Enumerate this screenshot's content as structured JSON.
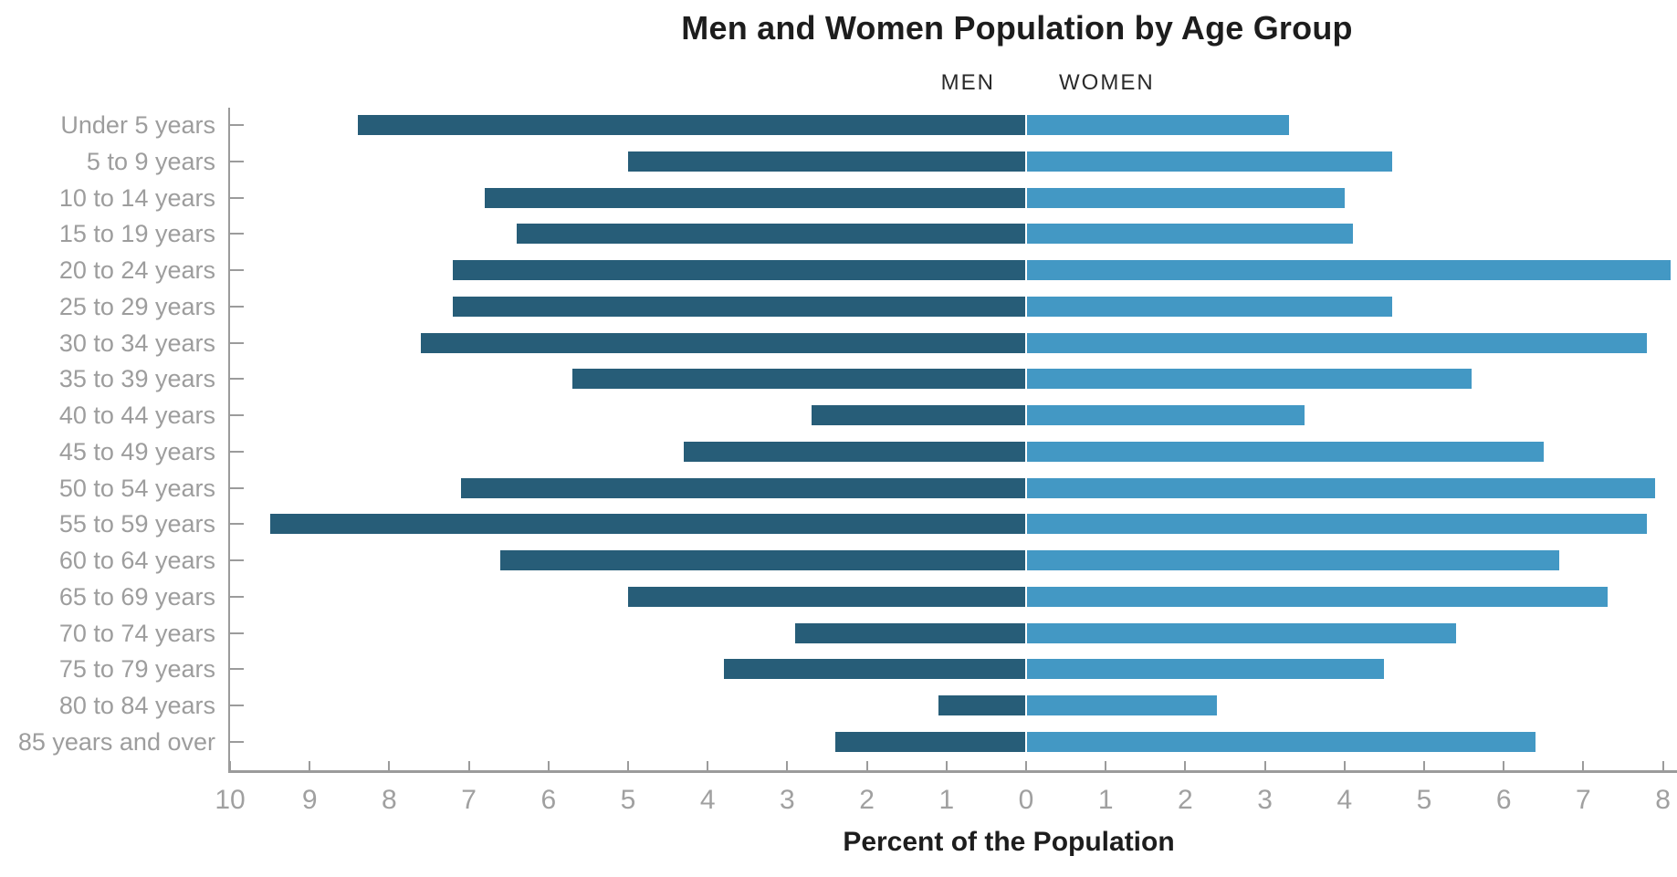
{
  "title": "Men and Women Population by Age Group",
  "legend": {
    "men": "MEN",
    "women": "WOMEN"
  },
  "x_axis_title": "Percent of the Population",
  "colors": {
    "men_bar": "#275d78",
    "women_bar": "#4398c4",
    "axis": "#9b9b9b",
    "tick_label": "#a0a0a0",
    "age_label": "#9d9d9d",
    "title_text": "#1d1d1d",
    "legend_text": "#2a2a2a"
  },
  "chart_data": {
    "type": "bar",
    "orientation": "horizontal-diverging",
    "title": "Men and Women Population by Age Group",
    "xlabel": "Percent of the Population",
    "ylabel": "",
    "grid": false,
    "legend_position": "top-center",
    "axis_range_left_percent": 10,
    "axis_range_right_percent": 8,
    "categories": [
      "Under 5 years",
      "5 to 9 years",
      "10 to 14 years",
      "15 to 19 years",
      "20 to 24 years",
      "25 to 29 years",
      "30 to 34 years",
      "35 to 39 years",
      "40 to 44 years",
      "45 to 49 years",
      "50 to 54 years",
      "55 to 59 years",
      "60 to 64 years",
      "65 to 69 years",
      "70 to 74 years",
      "75 to 79 years",
      "80 to 84 years",
      "85 years and over"
    ],
    "series": [
      {
        "name": "MEN",
        "side": "left",
        "values": [
          8.4,
          5.0,
          6.8,
          6.4,
          7.2,
          7.2,
          7.6,
          5.7,
          2.7,
          4.3,
          7.1,
          9.5,
          6.6,
          5.0,
          2.9,
          3.8,
          1.1,
          2.4
        ]
      },
      {
        "name": "WOMEN",
        "side": "right",
        "values": [
          3.3,
          4.6,
          4.0,
          4.1,
          8.1,
          4.6,
          7.8,
          5.6,
          3.5,
          6.5,
          7.9,
          7.8,
          6.7,
          7.3,
          5.4,
          4.5,
          2.4,
          6.4
        ]
      }
    ],
    "x_ticks": [
      {
        "value": -10,
        "label": "10"
      },
      {
        "value": -9,
        "label": "9"
      },
      {
        "value": -8,
        "label": "8"
      },
      {
        "value": -7,
        "label": "7"
      },
      {
        "value": -6,
        "label": "6"
      },
      {
        "value": -5,
        "label": "5"
      },
      {
        "value": -4,
        "label": "4"
      },
      {
        "value": -3,
        "label": "3"
      },
      {
        "value": -2,
        "label": "2"
      },
      {
        "value": -1,
        "label": "1"
      },
      {
        "value": 0,
        "label": "0"
      },
      {
        "value": 1,
        "label": "1"
      },
      {
        "value": 2,
        "label": "2"
      },
      {
        "value": 3,
        "label": "3"
      },
      {
        "value": 4,
        "label": "4"
      },
      {
        "value": 5,
        "label": "5"
      },
      {
        "value": 6,
        "label": "6"
      },
      {
        "value": 7,
        "label": "7"
      },
      {
        "value": 8,
        "label": "8"
      }
    ]
  }
}
